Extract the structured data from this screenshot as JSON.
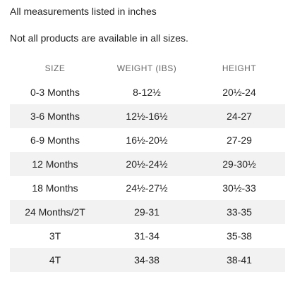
{
  "notes": [
    "All measurements listed in inches",
    "Not all products are available in all sizes."
  ],
  "table": {
    "header": [
      "SIZE",
      "WEIGHT (IBS)",
      "HEIGHT"
    ],
    "rows": [
      [
        "0-3 Months",
        "8-12½",
        "20½-24"
      ],
      [
        "3-6 Months",
        "12½-16½",
        "24-27"
      ],
      [
        "6-9 Months",
        "16½-20½",
        "27-29"
      ],
      [
        "12 Months",
        "20½-24½",
        "29-30½"
      ],
      [
        "18 Months",
        "24½-27½",
        "30½-33"
      ],
      [
        "24 Months/2T",
        "29-31",
        "33-35"
      ],
      [
        "3T",
        "31-34",
        "35-38"
      ],
      [
        "4T",
        "34-38",
        "38-41"
      ]
    ]
  }
}
